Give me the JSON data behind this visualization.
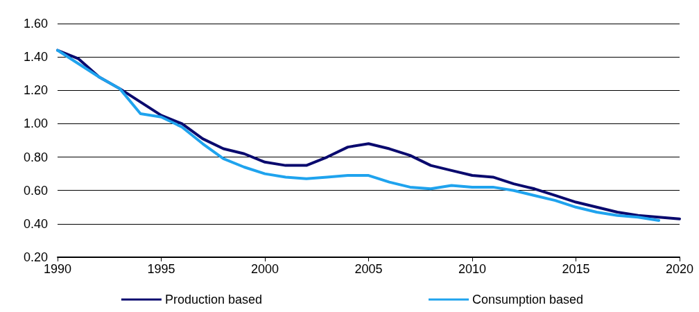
{
  "chart_data": {
    "type": "line",
    "x": [
      1990,
      1991,
      1992,
      1993,
      1994,
      1995,
      1996,
      1997,
      1998,
      1999,
      2000,
      2001,
      2002,
      2003,
      2004,
      2005,
      2006,
      2007,
      2008,
      2009,
      2010,
      2011,
      2012,
      2013,
      2014,
      2015,
      2016,
      2017,
      2018,
      2019,
      2020
    ],
    "series": [
      {
        "name": "Production based",
        "color": "#0a0a6e",
        "values": [
          1.44,
          1.39,
          1.28,
          1.21,
          1.13,
          1.05,
          1.0,
          0.91,
          0.85,
          0.82,
          0.77,
          0.75,
          0.75,
          0.8,
          0.86,
          0.88,
          0.85,
          0.81,
          0.75,
          0.72,
          0.69,
          0.68,
          0.64,
          0.61,
          0.57,
          0.53,
          0.5,
          0.47,
          0.45,
          0.44,
          0.43
        ]
      },
      {
        "name": "Consumption based",
        "color": "#1fa3ee",
        "values": [
          1.44,
          1.36,
          1.28,
          1.21,
          1.06,
          1.04,
          0.98,
          0.88,
          0.79,
          0.74,
          0.7,
          0.68,
          0.67,
          0.68,
          0.69,
          0.69,
          0.65,
          0.62,
          0.61,
          0.63,
          0.62,
          0.62,
          0.6,
          0.57,
          0.54,
          0.5,
          0.47,
          0.45,
          0.44,
          0.42,
          null
        ]
      }
    ],
    "xlim": [
      1990,
      2020
    ],
    "xticks": [
      1990,
      1995,
      2000,
      2005,
      2010,
      2015,
      2020
    ],
    "ylim": [
      0.2,
      1.6
    ],
    "yticks": [
      {
        "value": 0.2,
        "label": "0.20"
      },
      {
        "value": 0.4,
        "label": "0.40"
      },
      {
        "value": 0.6,
        "label": "0.60"
      },
      {
        "value": 0.8,
        "label": "0.80"
      },
      {
        "value": 1.0,
        "label": "1.00"
      },
      {
        "value": 1.2,
        "label": "1.20"
      },
      {
        "value": 1.4,
        "label": "1.40"
      },
      {
        "value": 1.6,
        "label": "1.60"
      }
    ],
    "grid": "y",
    "legend": "bottom",
    "marker": "none",
    "line_style": "solid"
  }
}
